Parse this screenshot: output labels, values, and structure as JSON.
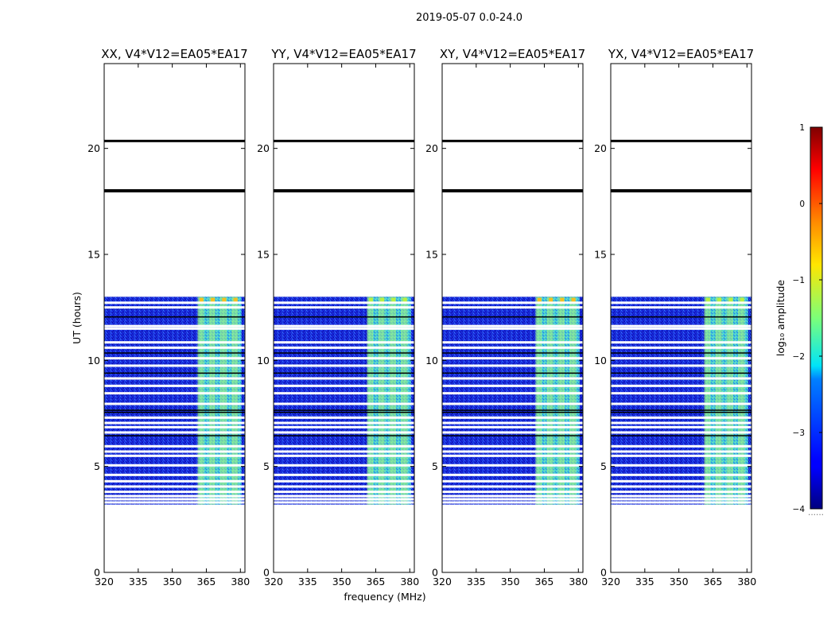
{
  "chart_data": {
    "type": "heatmap",
    "suptitle": "2019-05-07 0.0-24.0",
    "xlabel": "frequency (MHz)",
    "ylabel": "UT (hours)",
    "xlim": [
      320,
      382
    ],
    "ylim": [
      0,
      24
    ],
    "xticks": [
      320,
      335,
      350,
      365,
      380
    ],
    "yticks": [
      0,
      5,
      10,
      15,
      20
    ],
    "panels": [
      {
        "title": "XX, V4*V12=EA05*EA17"
      },
      {
        "title": "YY, V4*V12=EA05*EA17"
      },
      {
        "title": "XY, V4*V12=EA05*EA17"
      },
      {
        "title": "YX, V4*V12=EA05*EA17"
      }
    ],
    "data_time_range_hours": [
      3.2,
      13.0
    ],
    "bright_band_mhz": [
      361.5,
      380.5
    ],
    "bright_channels_mhz": [
      362.5,
      367.5,
      372.5,
      377.5
    ],
    "black_lines_hours": [
      20.35,
      18.0,
      7.55,
      7.65,
      6.45,
      10.35,
      9.4,
      12.05
    ],
    "white_gaps_hours": [
      12.72,
      12.5,
      11.5,
      11.62,
      10.85,
      10.6,
      10.1,
      9.75,
      9.15,
      8.8,
      8.45,
      7.95,
      7.3,
      7.05,
      6.85,
      6.6,
      5.95,
      5.7,
      5.5,
      5.05,
      4.6,
      4.3,
      4.05,
      3.8,
      3.6,
      3.45,
      3.3
    ],
    "colorbar": {
      "label": "log₁₀ amplitude",
      "range": [
        -4,
        1
      ],
      "ticks": [
        "1",
        "0",
        "−1",
        "−2",
        "−3",
        "−4"
      ],
      "extend_label": "......"
    }
  }
}
